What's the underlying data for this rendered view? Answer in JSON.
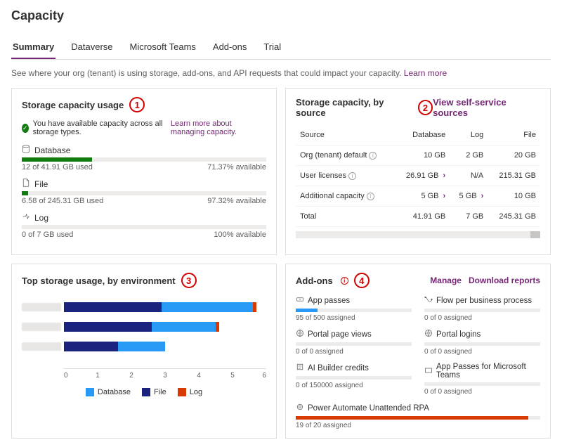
{
  "page": {
    "title": "Capacity",
    "desc": "See where your org (tenant) is using storage, add-ons, and API requests that could impact your capacity.",
    "learn_more": "Learn more"
  },
  "tabs": [
    "Summary",
    "Dataverse",
    "Microsoft Teams",
    "Add-ons",
    "Trial"
  ],
  "colors": {
    "purple": "#742774",
    "green": "#107c10",
    "barGreen": "#107c10",
    "orange": "#d83b01",
    "blue": "#2899f5",
    "darkBlue": "#1a237e",
    "barBg": "#edebe9"
  },
  "card1": {
    "title": "Storage capacity usage",
    "annot": "1",
    "status": "You have available capacity across all storage types.",
    "status_link": "Learn more about managing capacity.",
    "items": [
      {
        "label": "Database",
        "used": "12 of 41.91 GB used",
        "avail": "71.37% available",
        "pct": 28.63,
        "color": "#107c10",
        "icon": "db"
      },
      {
        "label": "File",
        "used": "6.58 of 245.31 GB used",
        "avail": "97.32% available",
        "pct": 2.68,
        "color": "#107c10",
        "icon": "file"
      },
      {
        "label": "Log",
        "used": "0 of 7 GB used",
        "avail": "100% available",
        "pct": 0,
        "color": "#107c10",
        "icon": "log"
      }
    ]
  },
  "card2": {
    "title": "Storage capacity, by source",
    "annot": "2",
    "link": "View self-service sources",
    "headers": [
      "Source",
      "Database",
      "Log",
      "File"
    ],
    "rows": [
      {
        "c0": "Org (tenant) default",
        "info": true,
        "c1": "10 GB",
        "chev1": false,
        "c2": "2 GB",
        "chev2": false,
        "c3": "20 GB"
      },
      {
        "c0": "User licenses",
        "info": true,
        "c1": "26.91 GB",
        "chev1": true,
        "c2": "N/A",
        "chev2": false,
        "c3": "215.31 GB"
      },
      {
        "c0": "Additional capacity",
        "info": true,
        "c1": "5 GB",
        "chev1": true,
        "c2": "5 GB",
        "chev2": true,
        "c3": "10 GB"
      },
      {
        "c0": "Total",
        "info": false,
        "c1": "41.91 GB",
        "chev1": false,
        "c2": "7 GB",
        "chev2": false,
        "c3": "245.31 GB"
      }
    ]
  },
  "card3": {
    "title": "Top storage usage, by environment",
    "annot": "3",
    "axis_max": 6,
    "rows": [
      {
        "db": 2.7,
        "file": 2.9,
        "log": 0.1
      },
      {
        "db": 1.9,
        "file": 2.6,
        "log": 0.1
      },
      {
        "db": 1.4,
        "file": 1.6,
        "log": 0.0
      }
    ],
    "colors": {
      "db": "#2899f5",
      "file": "#1a237e",
      "log": "#d83b01"
    },
    "legend": [
      {
        "label": "Database",
        "color": "#2899f5"
      },
      {
        "label": "File",
        "color": "#1a237e"
      },
      {
        "label": "Log",
        "color": "#d83b01"
      }
    ],
    "axis_ticks": [
      "0",
      "1",
      "2",
      "3",
      "4",
      "5",
      "6"
    ]
  },
  "card4": {
    "title": "Add-ons",
    "annot": "4",
    "links": [
      "Manage",
      "Download reports"
    ],
    "items": [
      {
        "icon": "ticket",
        "label": "App passes",
        "text": "95 of 500 assigned",
        "pct": 19,
        "color": "#2899f5"
      },
      {
        "icon": "flow",
        "label": "Flow per business process",
        "text": "0 of 0 assigned",
        "pct": 0,
        "color": "#2899f5"
      },
      {
        "icon": "globe",
        "label": "Portal page views",
        "text": "0 of 0 assigned",
        "pct": 0,
        "color": "#2899f5"
      },
      {
        "icon": "globe",
        "label": "Portal logins",
        "text": "0 of 0 assigned",
        "pct": 0,
        "color": "#2899f5"
      },
      {
        "icon": "ai",
        "label": "AI Builder credits",
        "text": "0 of 150000 assigned",
        "pct": 0,
        "color": "#2899f5"
      },
      {
        "icon": "rect",
        "label": "App Passes for Microsoft Teams",
        "text": "0 of 0 assigned",
        "pct": 0,
        "color": "#2899f5"
      },
      {
        "icon": "rpa",
        "label": "Power Automate Unattended RPA",
        "text": "19 of 20 assigned",
        "pct": 95,
        "color": "#d83b01",
        "wide": true
      }
    ]
  }
}
